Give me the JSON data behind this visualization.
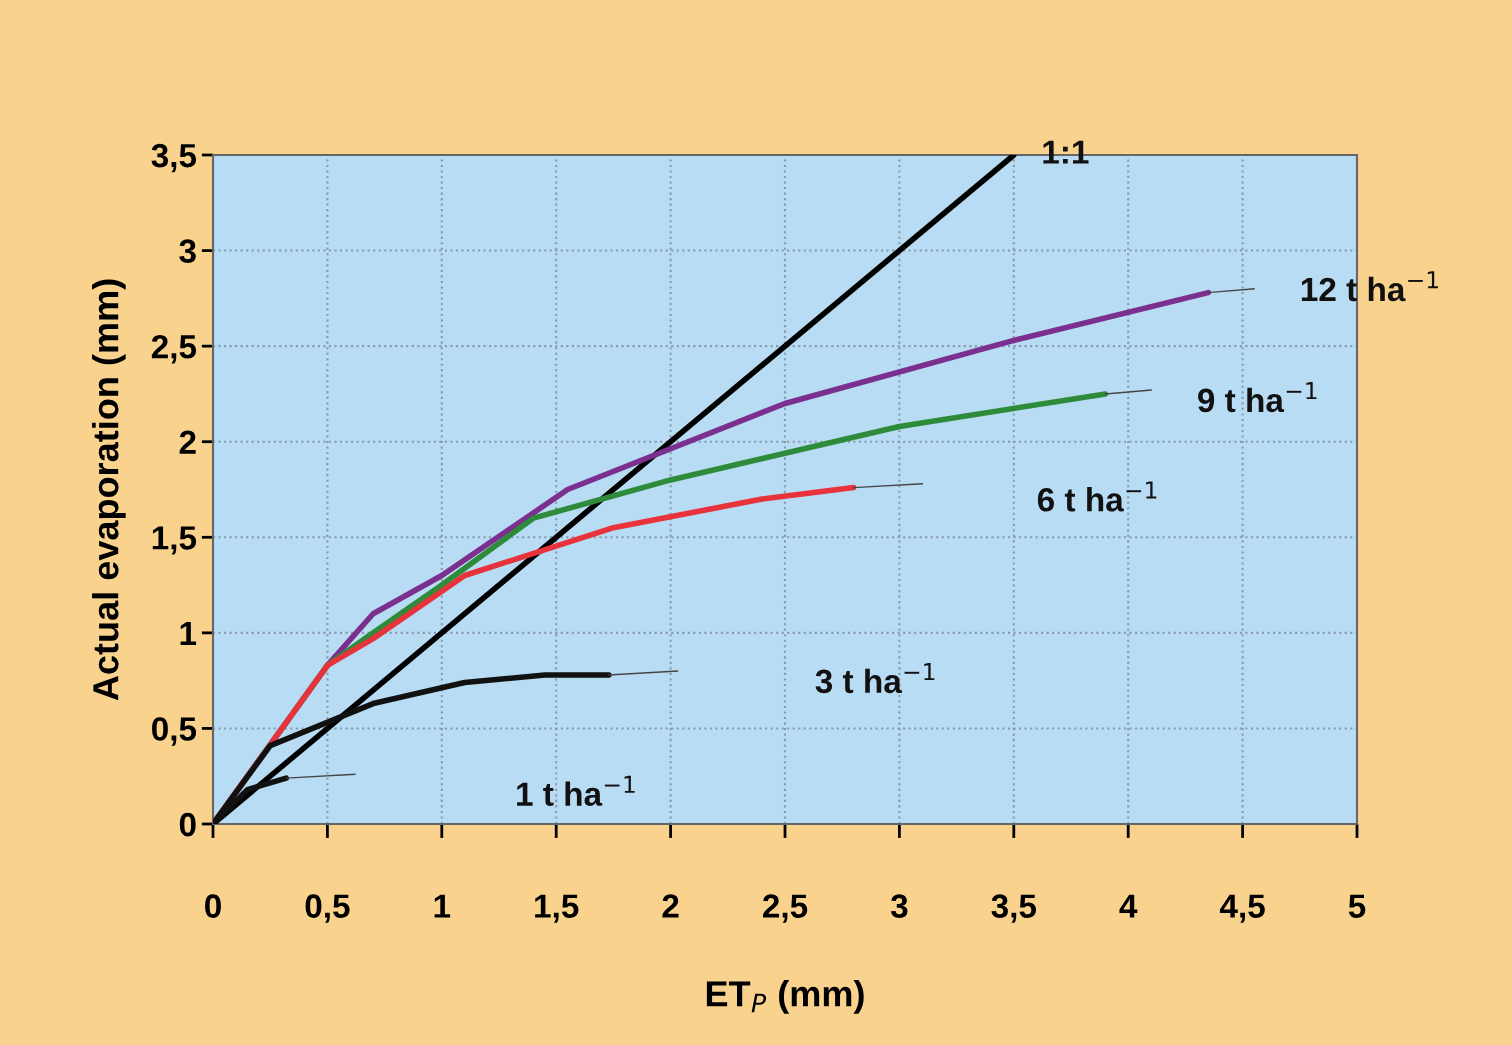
{
  "chart_data": {
    "type": "line",
    "xlabel": "ET$_{P}$ (mm)",
    "ylabel": "Actual evaporation (mm)",
    "xlim": [
      0,
      5
    ],
    "ylim": [
      0,
      3.5
    ],
    "xticks": [
      0,
      {
        "value": 0.5,
        "label": "0,5"
      },
      1,
      {
        "value": 1.5,
        "label": "1,5"
      },
      2,
      {
        "value": 2.5,
        "label": "2,5"
      },
      3,
      {
        "value": 3.5,
        "label": "3,5"
      },
      4,
      {
        "value": 4.5,
        "label": "4,5"
      },
      5
    ],
    "yticks": [
      0,
      {
        "value": 0.5,
        "label": "0,5"
      },
      1,
      {
        "value": 1.5,
        "label": "1,5"
      },
      2,
      {
        "value": 2.5,
        "label": "2,5"
      },
      3,
      {
        "value": 3.5,
        "label": "3,5"
      }
    ],
    "grid": true,
    "marker": "none",
    "line_style": "solid",
    "series": [
      {
        "name": "1:1",
        "color": "#000000",
        "x": [
          0,
          3.5
        ],
        "values": [
          0,
          3.5
        ]
      },
      {
        "name": "12 t ha$^{−1}$",
        "color": "#7b2f8e",
        "x": [
          0,
          0.5,
          0.7,
          1.0,
          1.55,
          2.5,
          3.5,
          4.35
        ],
        "values": [
          0,
          0.83,
          1.1,
          1.3,
          1.75,
          2.2,
          2.53,
          2.78
        ]
      },
      {
        "name": "9 t ha$^{−1}$",
        "color": "#2e8b3a",
        "x": [
          0,
          0.5,
          0.7,
          1.0,
          1.4,
          2.0,
          3.0,
          3.9
        ],
        "values": [
          0,
          0.83,
          1.0,
          1.25,
          1.6,
          1.8,
          2.08,
          2.25
        ]
      },
      {
        "name": "6 t ha$^{−1}$",
        "color": "#e8323c",
        "x": [
          0,
          0.5,
          0.7,
          1.1,
          1.75,
          2.4,
          2.8
        ],
        "values": [
          0,
          0.83,
          0.97,
          1.3,
          1.55,
          1.7,
          1.76
        ]
      },
      {
        "name": "3 t ha$^{−1}$",
        "color": "#111111",
        "x": [
          0,
          0.25,
          0.7,
          1.1,
          1.45,
          1.73
        ],
        "values": [
          0,
          0.41,
          0.63,
          0.74,
          0.78,
          0.78
        ]
      },
      {
        "name": "1 t ha$^{−1}$",
        "color": "#111111",
        "x": [
          0,
          0.15,
          0.32
        ],
        "values": [
          0,
          0.18,
          0.24
        ]
      }
    ]
  }
}
